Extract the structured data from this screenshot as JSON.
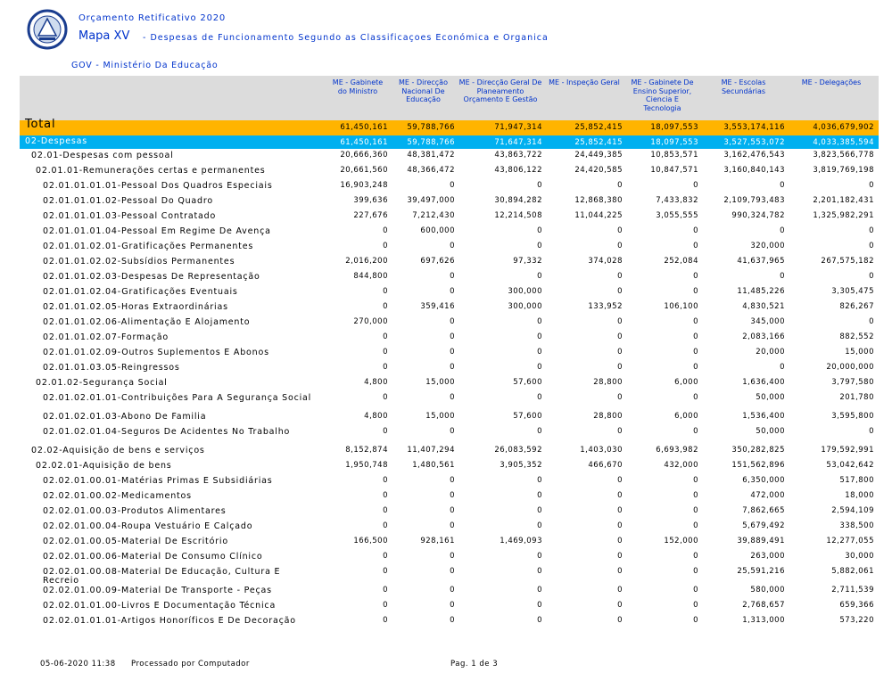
{
  "header": {
    "line1": "Orçamento Retificativo 2020",
    "title": "Mapa XV",
    "subtitle": "- Despesas de Funcionamento Segundo as Classificaçoes Económica e Organica",
    "ministry": "GOV - Ministério Da Educação"
  },
  "table": {
    "columns": [
      "ME - Gabinete do Ministro",
      "ME - Direcção Nacional De Educação",
      "ME - Direcção Geral De Planeamento Orçamento E Gestão",
      "ME - Inspeção Geral",
      "ME - Gabinete De Ensino Superior, Ciencia E Tecnologia",
      "ME - Escolas Secundárias",
      "ME - Delegações"
    ],
    "rows": [
      [
        "Total",
        "61,450,161",
        "59,788,766",
        "71,947,314",
        "25,852,415",
        "18,097,553",
        "3,553,174,116",
        "4,036,679,902"
      ],
      [
        "02-Despesas",
        "61,450,161",
        "59,788,766",
        "71,647,314",
        "25,852,415",
        "18,097,553",
        "3,527,553,072",
        "4,033,385,594"
      ],
      [
        "02.01-Despesas com pessoal",
        "20,666,360",
        "48,381,472",
        "43,863,722",
        "24,449,385",
        "10,853,571",
        "3,162,476,543",
        "3,823,566,778"
      ],
      [
        "02.01.01-Remunerações certas e permanentes",
        "20,661,560",
        "48,366,472",
        "43,806,122",
        "24,420,585",
        "10,847,571",
        "3,160,840,143",
        "3,819,769,198"
      ],
      [
        "02.01.01.01.01-Pessoal Dos Quadros Especiais",
        "16,903,248",
        "0",
        "0",
        "0",
        "0",
        "0",
        "0"
      ],
      [
        "02.01.01.01.02-Pessoal Do Quadro",
        "399,636",
        "39,497,000",
        "30,894,282",
        "12,868,380",
        "7,433,832",
        "2,109,793,483",
        "2,201,182,431"
      ],
      [
        "02.01.01.01.03-Pessoal Contratado",
        "227,676",
        "7,212,430",
        "12,214,508",
        "11,044,225",
        "3,055,555",
        "990,324,782",
        "1,325,982,291"
      ],
      [
        "02.01.01.01.04-Pessoal Em Regime De Avença",
        "0",
        "600,000",
        "0",
        "0",
        "0",
        "0",
        "0"
      ],
      [
        "02.01.01.02.01-Gratificações Permanentes",
        "0",
        "0",
        "0",
        "0",
        "0",
        "320,000",
        "0"
      ],
      [
        "02.01.01.02.02-Subsídios Permanentes",
        "2,016,200",
        "697,626",
        "97,332",
        "374,028",
        "252,084",
        "41,637,965",
        "267,575,182"
      ],
      [
        "02.01.01.02.03-Despesas De Representação",
        "844,800",
        "0",
        "0",
        "0",
        "0",
        "0",
        "0"
      ],
      [
        "02.01.01.02.04-Gratificações Eventuais",
        "0",
        "0",
        "300,000",
        "0",
        "0",
        "11,485,226",
        "3,305,475"
      ],
      [
        "02.01.01.02.05-Horas Extraordinárias",
        "0",
        "359,416",
        "300,000",
        "133,952",
        "106,100",
        "4,830,521",
        "826,267"
      ],
      [
        "02.01.01.02.06-Alimentação E Alojamento",
        "270,000",
        "0",
        "0",
        "0",
        "0",
        "345,000",
        "0"
      ],
      [
        "02.01.01.02.07-Formação",
        "0",
        "0",
        "0",
        "0",
        "0",
        "2,083,166",
        "882,552"
      ],
      [
        "02.01.01.02.09-Outros Suplementos E Abonos",
        "0",
        "0",
        "0",
        "0",
        "0",
        "20,000",
        "15,000"
      ],
      [
        "02.01.01.03.05-Reingressos",
        "0",
        "0",
        "0",
        "0",
        "0",
        "0",
        "20,000,000"
      ],
      [
        "02.01.02-Segurança Social",
        "4,800",
        "15,000",
        "57,600",
        "28,800",
        "6,000",
        "1,636,400",
        "3,797,580"
      ],
      [
        "02.01.02.01.01-Contribuições Para A Segurança Social",
        "0",
        "0",
        "0",
        "0",
        "0",
        "50,000",
        "201,780"
      ],
      [
        "02.01.02.01.03-Abono De Familia",
        "4,800",
        "15,000",
        "57,600",
        "28,800",
        "6,000",
        "1,536,400",
        "3,595,800"
      ],
      [
        "02.01.02.01.04-Seguros De Acidentes No Trabalho",
        "0",
        "0",
        "0",
        "0",
        "0",
        "50,000",
        "0"
      ],
      [
        "02.02-Aquisição de bens e serviços",
        "8,152,874",
        "11,407,294",
        "26,083,592",
        "1,403,030",
        "6,693,982",
        "350,282,825",
        "179,592,991"
      ],
      [
        "02.02.01-Aquisição de bens",
        "1,950,748",
        "1,480,561",
        "3,905,352",
        "466,670",
        "432,000",
        "151,562,896",
        "53,042,642"
      ],
      [
        "02.02.01.00.01-Matérias Primas E Subsidiárias",
        "0",
        "0",
        "0",
        "0",
        "0",
        "6,350,000",
        "517,800"
      ],
      [
        "02.02.01.00.02-Medicamentos",
        "0",
        "0",
        "0",
        "0",
        "0",
        "472,000",
        "18,000"
      ],
      [
        "02.02.01.00.03-Produtos Alimentares",
        "0",
        "0",
        "0",
        "0",
        "0",
        "7,862,665",
        "2,594,109"
      ],
      [
        "02.02.01.00.04-Roupa Vestuário E Calçado",
        "0",
        "0",
        "0",
        "0",
        "0",
        "5,679,492",
        "338,500"
      ],
      [
        "02.02.01.00.05-Material De Escritório",
        "166,500",
        "928,161",
        "1,469,093",
        "0",
        "152,000",
        "39,889,491",
        "12,277,055"
      ],
      [
        "02.02.01.00.06-Material De Consumo Clínico",
        "0",
        "0",
        "0",
        "0",
        "0",
        "263,000",
        "30,000"
      ],
      [
        "02.02.01.00.08-Material De Educação, Cultura E Recreio",
        "0",
        "0",
        "0",
        "0",
        "0",
        "25,591,216",
        "5,882,061"
      ],
      [
        "02.02.01.00.09-Material De Transporte - Peças",
        "0",
        "0",
        "0",
        "0",
        "0",
        "580,000",
        "2,711,539"
      ],
      [
        "02.02.01.01.00-Livros E Documentação Técnica",
        "0",
        "0",
        "0",
        "0",
        "0",
        "2,768,657",
        "659,366"
      ],
      [
        "02.02.01.01.01-Artigos Honoríficos E De Decoração",
        "0",
        "0",
        "0",
        "0",
        "0",
        "1,313,000",
        "573,220"
      ]
    ]
  },
  "footer": {
    "date": "05-06-2020 11:38",
    "processed": "Processado por Computador",
    "page": "Pag. 1 de 3"
  }
}
